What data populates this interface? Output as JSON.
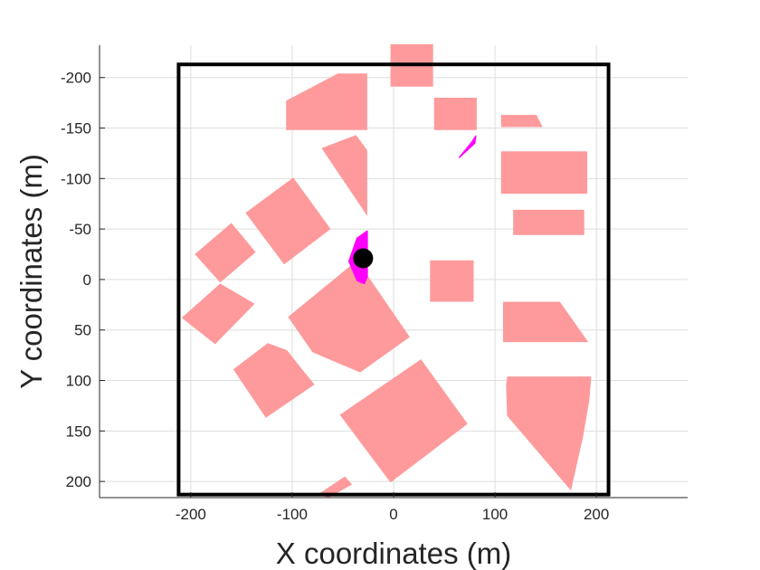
{
  "chart_data": {
    "type": "scatter",
    "xlabel": "X coordinates (m)",
    "ylabel": "Y coordinates (m)",
    "xlim": [
      -290,
      290
    ],
    "ylim": [
      -232,
      216
    ],
    "y_axis_reversed": true,
    "grid": true,
    "x_ticks": [
      -200,
      -100,
      0,
      100,
      200
    ],
    "y_ticks": [
      -200,
      -150,
      -100,
      -50,
      0,
      50,
      100,
      150,
      200
    ],
    "x_tick_labels": [
      "-200",
      "-100",
      "0",
      "100",
      "200"
    ],
    "y_tick_labels": [
      "-200",
      "-150",
      "-100",
      "-50",
      "0",
      "50",
      "100",
      "150",
      "200"
    ],
    "boundary": {
      "x": [
        -212,
        212
      ],
      "y": [
        -213,
        213
      ],
      "color": "#000000"
    },
    "obstacle_color": "#fe9a9b",
    "obstacles": [
      [
        [
          -106,
          -177
        ],
        [
          -55,
          -204
        ],
        [
          -26,
          -204
        ],
        [
          -26,
          -148
        ],
        [
          -106,
          -148
        ]
      ],
      [
        [
          -3,
          -233
        ],
        [
          39,
          -233
        ],
        [
          39,
          -191
        ],
        [
          -3,
          -191
        ]
      ],
      [
        [
          40,
          -180
        ],
        [
          82,
          -180
        ],
        [
          82,
          -148
        ],
        [
          40,
          -148
        ]
      ],
      [
        [
          106,
          -163
        ],
        [
          141,
          -163
        ],
        [
          147,
          -151
        ],
        [
          106,
          -151
        ]
      ],
      [
        [
          -71,
          -130
        ],
        [
          -37,
          -143
        ],
        [
          -26,
          -128
        ],
        [
          -26,
          -63
        ],
        [
          -71,
          -130
        ]
      ],
      [
        [
          106,
          -127
        ],
        [
          191,
          -127
        ],
        [
          191,
          -85
        ],
        [
          106,
          -85
        ]
      ],
      [
        [
          -146,
          -66
        ],
        [
          -99,
          -101
        ],
        [
          -62,
          -50
        ],
        [
          -108,
          -15
        ],
        [
          -146,
          -66
        ]
      ],
      [
        [
          118,
          -69
        ],
        [
          188,
          -69
        ],
        [
          188,
          -44
        ],
        [
          118,
          -44
        ]
      ],
      [
        [
          -196,
          -25
        ],
        [
          -160,
          -56
        ],
        [
          -136,
          -27
        ],
        [
          -171,
          3
        ],
        [
          -196,
          -25
        ]
      ],
      [
        [
          36,
          -19
        ],
        [
          79,
          -19
        ],
        [
          79,
          22
        ],
        [
          36,
          22
        ]
      ],
      [
        [
          -209,
          38
        ],
        [
          -171,
          4
        ],
        [
          -137,
          24
        ],
        [
          -176,
          64
        ],
        [
          -209,
          38
        ]
      ],
      [
        [
          -104,
          37
        ],
        [
          -36,
          -19
        ],
        [
          16,
          57
        ],
        [
          -33,
          92
        ],
        [
          -80,
          72
        ],
        [
          -104,
          37
        ]
      ],
      [
        [
          108,
          22
        ],
        [
          164,
          22
        ],
        [
          192,
          62
        ],
        [
          108,
          62
        ]
      ],
      [
        [
          -158,
          89
        ],
        [
          -124,
          63
        ],
        [
          -105,
          70
        ],
        [
          -91,
          88
        ],
        [
          -78,
          104
        ],
        [
          -126,
          137
        ],
        [
          -158,
          89
        ]
      ],
      [
        [
          112,
          96
        ],
        [
          195,
          96
        ],
        [
          193,
          120
        ],
        [
          187,
          155
        ],
        [
          175,
          209
        ],
        [
          112,
          135
        ],
        [
          111,
          105
        ],
        [
          112,
          96
        ]
      ],
      [
        [
          -53,
          134
        ],
        [
          27,
          79
        ],
        [
          73,
          143
        ],
        [
          -3,
          201
        ],
        [
          -53,
          134
        ]
      ],
      [
        [
          -75,
          213
        ],
        [
          -48,
          195
        ],
        [
          -41,
          203
        ],
        [
          -64,
          216
        ],
        [
          -75,
          213
        ]
      ]
    ],
    "path_color": "#ff00ff",
    "path_segments": [
      [
        [
          65,
          -121
        ],
        [
          78,
          -137
        ],
        [
          81,
          -142
        ],
        [
          80,
          -135
        ],
        [
          67,
          -123
        ]
      ],
      [
        [
          -44,
          -18
        ],
        [
          -36,
          -41
        ],
        [
          -26,
          -48
        ],
        [
          -26,
          -3
        ],
        [
          -29,
          4
        ],
        [
          -36,
          1
        ],
        [
          -44,
          -18
        ]
      ]
    ],
    "robot": {
      "x": -30,
      "y": -21,
      "color": "#000000"
    }
  }
}
